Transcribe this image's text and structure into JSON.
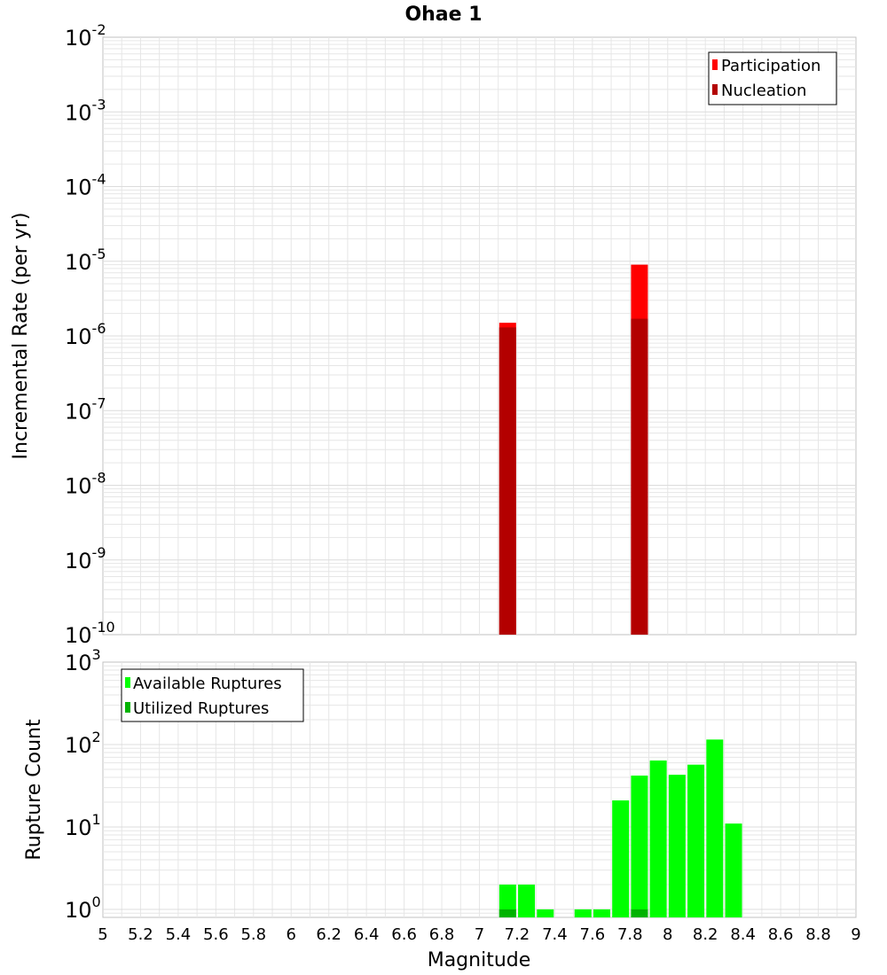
{
  "chart_data": [
    {
      "type": "bar",
      "title": "Ohae 1",
      "xlabel": "",
      "ylabel": "Incremental Rate (per yr)",
      "yscale": "log",
      "ylim": [
        1e-10,
        0.01
      ],
      "xlim": [
        5,
        9
      ],
      "grid": true,
      "legend_position": "top-right",
      "ytick_labels": [
        {
          "base": "10",
          "exp": "-10"
        },
        {
          "base": "10",
          "exp": "-9"
        },
        {
          "base": "10",
          "exp": "-8"
        },
        {
          "base": "10",
          "exp": "-7"
        },
        {
          "base": "10",
          "exp": "-6"
        },
        {
          "base": "10",
          "exp": "-5"
        },
        {
          "base": "10",
          "exp": "-4"
        },
        {
          "base": "10",
          "exp": "-3"
        },
        {
          "base": "10",
          "exp": "-2"
        }
      ],
      "series": [
        {
          "name": "Participation",
          "color": "#ff0000",
          "x": [
            7.15,
            7.85
          ],
          "values": [
            1.5e-06,
            9e-06
          ]
        },
        {
          "name": "Nucleation",
          "color": "#b30000",
          "x": [
            7.15,
            7.85
          ],
          "values": [
            1.3e-06,
            1.7e-06
          ]
        }
      ]
    },
    {
      "type": "bar",
      "title": "",
      "xlabel": "Magnitude",
      "ylabel": "Rupture Count",
      "yscale": "log",
      "ylim": [
        0.8,
        1000
      ],
      "xlim": [
        5,
        9
      ],
      "grid": true,
      "legend_position": "top-left",
      "ytick_labels": [
        {
          "base": "10",
          "exp": "0"
        },
        {
          "base": "10",
          "exp": "1"
        },
        {
          "base": "10",
          "exp": "2"
        },
        {
          "base": "10",
          "exp": "3"
        }
      ],
      "xtick_labels": [
        "5",
        "5.2",
        "5.4",
        "5.6",
        "5.8",
        "6",
        "6.2",
        "6.4",
        "6.6",
        "6.8",
        "7",
        "7.2",
        "7.4",
        "7.6",
        "7.8",
        "8",
        "8.2",
        "8.4",
        "8.6",
        "8.8",
        "9"
      ],
      "series": [
        {
          "name": "Available Ruptures",
          "color": "#00ff00",
          "x": [
            7.15,
            7.25,
            7.35,
            7.55,
            7.65,
            7.75,
            7.85,
            7.95,
            8.05,
            8.15,
            8.25,
            8.35
          ],
          "values": [
            2,
            2,
            1,
            1,
            1,
            21,
            42,
            64,
            43,
            57,
            115,
            11
          ]
        },
        {
          "name": "Utilized Ruptures",
          "color": "#00b300",
          "x": [
            7.15,
            7.85
          ],
          "values": [
            1,
            1
          ]
        }
      ]
    }
  ]
}
